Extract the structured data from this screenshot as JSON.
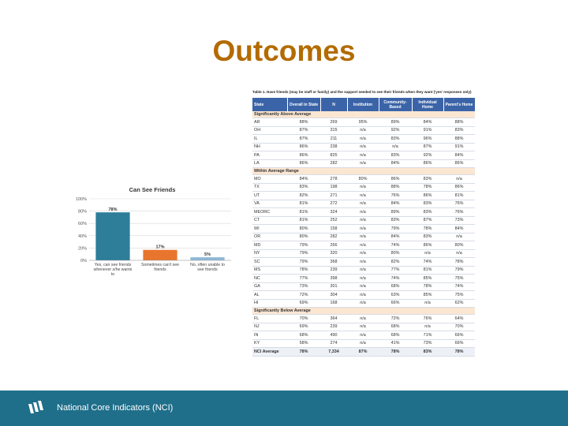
{
  "page": {
    "title": "Outcomes"
  },
  "chart_data": {
    "type": "bar",
    "title": "Can See Friends",
    "categories": [
      [
        "Yes, can see friends",
        "whenever s/he wants",
        "to"
      ],
      [
        "Sometimes can't see",
        "friends"
      ],
      [
        "No, often unable to",
        "see friends"
      ]
    ],
    "values": [
      78,
      17,
      5
    ],
    "value_labels": [
      "78%",
      "17%",
      "5%"
    ],
    "bar_colors": [
      "#2e7d99",
      "#e8752d",
      "#8fb8d8"
    ],
    "ylim": [
      0,
      100
    ],
    "yticks": [
      "0%",
      "20%",
      "40%",
      "60%",
      "80%",
      "100%"
    ],
    "ytick_values": [
      0,
      20,
      40,
      60,
      80,
      100
    ],
    "grid": true
  },
  "table": {
    "caption": "Table 1. Have friends (may be staff or family) and the support needed to see their friends when they want ('yes' responses only)",
    "headers": [
      "State",
      "Overall in State",
      "N",
      "Institution",
      "Community-Based",
      "Individual Home",
      "Parent's Home"
    ],
    "sections": [
      {
        "label": "Significantly Above Average",
        "rows": [
          [
            "AR",
            "88%",
            "269",
            "95%",
            "89%",
            "84%",
            "88%"
          ],
          [
            "OH",
            "87%",
            "315",
            "n/a",
            "92%",
            "91%",
            "83%"
          ],
          [
            "IL",
            "87%",
            "211",
            "n/a",
            "83%",
            "96%",
            "88%"
          ],
          [
            "NH",
            "86%",
            "238",
            "n/a",
            "n/a",
            "87%",
            "91%"
          ],
          [
            "PA",
            "86%",
            "825",
            "n/a",
            "83%",
            "92%",
            "84%"
          ],
          [
            "LA",
            "86%",
            "282",
            "n/a",
            "84%",
            "86%",
            "86%"
          ]
        ]
      },
      {
        "label": "Within Average Range",
        "rows": [
          [
            "MO",
            "84%",
            "278",
            "80%",
            "86%",
            "83%",
            "n/a"
          ],
          [
            "TX",
            "83%",
            "198",
            "n/a",
            "88%",
            "78%",
            "86%"
          ],
          [
            "UT",
            "82%",
            "271",
            "n/a",
            "76%",
            "86%",
            "81%"
          ],
          [
            "VA",
            "81%",
            "272",
            "n/a",
            "84%",
            "83%",
            "76%"
          ],
          [
            "MEORC",
            "81%",
            "324",
            "n/a",
            "89%",
            "83%",
            "76%"
          ],
          [
            "CT",
            "81%",
            "252",
            "n/a",
            "83%",
            "87%",
            "73%"
          ],
          [
            "WI",
            "80%",
            "158",
            "n/a",
            "79%",
            "78%",
            "84%"
          ],
          [
            "OR",
            "80%",
            "282",
            "n/a",
            "84%",
            "83%",
            "n/a"
          ],
          [
            "MD",
            "79%",
            "266",
            "n/a",
            "74%",
            "86%",
            "80%"
          ],
          [
            "NY",
            "79%",
            "320",
            "n/a",
            "80%",
            "n/a",
            "n/a"
          ],
          [
            "SC",
            "79%",
            "368",
            "n/a",
            "82%",
            "74%",
            "78%"
          ],
          [
            "MS",
            "78%",
            "239",
            "n/a",
            "77%",
            "81%",
            "79%"
          ],
          [
            "NC",
            "77%",
            "398",
            "n/a",
            "74%",
            "85%",
            "75%"
          ],
          [
            "GA",
            "73%",
            "301",
            "n/a",
            "68%",
            "78%",
            "74%"
          ],
          [
            "AL",
            "72%",
            "304",
            "n/a",
            "63%",
            "85%",
            "75%"
          ],
          [
            "HI",
            "69%",
            "168",
            "n/a",
            "66%",
            "n/a",
            "62%"
          ]
        ]
      },
      {
        "label": "Significantly Below Average",
        "rows": [
          [
            "FL",
            "70%",
            "364",
            "n/a",
            "72%",
            "76%",
            "64%"
          ],
          [
            "NJ",
            "69%",
            "239",
            "n/a",
            "68%",
            "n/a",
            "70%"
          ],
          [
            "IN",
            "68%",
            "490",
            "n/a",
            "68%",
            "71%",
            "66%"
          ],
          [
            "KY",
            "58%",
            "274",
            "n/a",
            "41%",
            "73%",
            "66%"
          ]
        ]
      }
    ],
    "average_row": [
      "NCI Average",
      "78%",
      "7,334",
      "87%",
      "78%",
      "83%",
      "78%"
    ]
  },
  "footer": {
    "text": "National Core Indicators (NCI)"
  },
  "colors": {
    "title": "#b36b00",
    "footer_bg": "#1f6f8b",
    "table_header": "#3b64a8",
    "section_bg": "#fbe6d2"
  }
}
